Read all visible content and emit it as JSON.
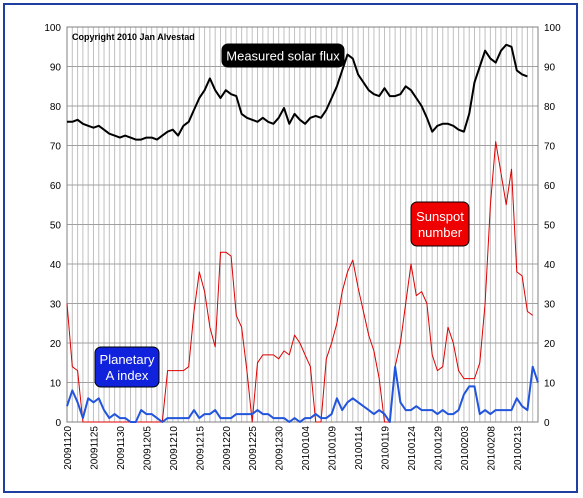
{
  "chart_data": {
    "type": "line",
    "copyright": "Copyright 2010 Jan Alvestad",
    "grid": true,
    "ylim": [
      0,
      100
    ],
    "yticks": [
      0,
      10,
      20,
      30,
      40,
      50,
      60,
      70,
      80,
      90,
      100
    ],
    "xtick_labels": [
      "20091120",
      "20091125",
      "20091130",
      "20091205",
      "20091210",
      "20091215",
      "20091220",
      "20091225",
      "20091230",
      "20100104",
      "20100109",
      "20100114",
      "20100119",
      "20100124",
      "20100129",
      "20100203",
      "20100208",
      "20100213"
    ],
    "x_start": "20091120",
    "x_end": "20100217",
    "colors": {
      "flux": "#000000",
      "sunspot": "#dd0000",
      "a_index": "#2255dd"
    },
    "annotations": [
      {
        "series": "flux",
        "text": "Measured solar flux",
        "bg": "#000000",
        "fg": "#ffffff"
      },
      {
        "series": "sunspot",
        "text": "Sunspot\nnumber",
        "bg": "#ee0000",
        "fg": "#ffffff"
      },
      {
        "series": "a_index",
        "text": "Planetary\nA index",
        "bg": "#1122dd",
        "fg": "#ffffff"
      }
    ],
    "series": [
      {
        "id": "flux",
        "values": [
          [
            0,
            76
          ],
          [
            1,
            76
          ],
          [
            2,
            76.5
          ],
          [
            3,
            75.5
          ],
          [
            4,
            75
          ],
          [
            5,
            74.5
          ],
          [
            6,
            75
          ],
          [
            7,
            74
          ],
          [
            8,
            73
          ],
          [
            9,
            72.5
          ],
          [
            10,
            72
          ],
          [
            11,
            72.5
          ],
          [
            12,
            72
          ],
          [
            13,
            71.5
          ],
          [
            14,
            71.5
          ],
          [
            15,
            72
          ],
          [
            16,
            72
          ],
          [
            17,
            71.5
          ],
          [
            18,
            72.5
          ],
          [
            19,
            73.5
          ],
          [
            20,
            74
          ],
          [
            21,
            72.5
          ],
          [
            22,
            75
          ],
          [
            23,
            76
          ],
          [
            24,
            79
          ],
          [
            25,
            82
          ],
          [
            26,
            84
          ],
          [
            27,
            87
          ],
          [
            28,
            84
          ],
          [
            29,
            82
          ],
          [
            30,
            84
          ],
          [
            31,
            83
          ],
          [
            32,
            82.5
          ],
          [
            33,
            78
          ],
          [
            34,
            77
          ],
          [
            35,
            76.5
          ],
          [
            36,
            76
          ],
          [
            37,
            77
          ],
          [
            38,
            76
          ],
          [
            39,
            75.5
          ],
          [
            40,
            77
          ],
          [
            41,
            79.5
          ],
          [
            42,
            75.5
          ],
          [
            43,
            78
          ],
          [
            44,
            76.5
          ],
          [
            45,
            75.5
          ],
          [
            46,
            77
          ],
          [
            47,
            77.5
          ],
          [
            48,
            77
          ],
          [
            49,
            79
          ],
          [
            50,
            82
          ],
          [
            51,
            85
          ],
          [
            52,
            89
          ],
          [
            53,
            93
          ],
          [
            54,
            92
          ],
          [
            55,
            88
          ],
          [
            56,
            86
          ],
          [
            57,
            84
          ],
          [
            58,
            83
          ],
          [
            59,
            82.5
          ],
          [
            60,
            84.5
          ],
          [
            61,
            82.5
          ],
          [
            62,
            82.5
          ],
          [
            63,
            83
          ],
          [
            64,
            85
          ],
          [
            65,
            84
          ],
          [
            66,
            82
          ],
          [
            67,
            80
          ],
          [
            68,
            77
          ],
          [
            69,
            73.5
          ],
          [
            70,
            75
          ],
          [
            71,
            75.5
          ],
          [
            72,
            75.5
          ],
          [
            73,
            75
          ],
          [
            74,
            74
          ],
          [
            75,
            73.5
          ],
          [
            76,
            78
          ],
          [
            77,
            86
          ],
          [
            78,
            90
          ],
          [
            79,
            94
          ],
          [
            80,
            92
          ],
          [
            81,
            91
          ],
          [
            82,
            94
          ],
          [
            83,
            95.5
          ],
          [
            84,
            95
          ],
          [
            85,
            89
          ],
          [
            86,
            88
          ],
          [
            87,
            87.5
          ]
        ]
      },
      {
        "id": "sunspot",
        "values": [
          [
            0,
            30
          ],
          [
            1,
            14
          ],
          [
            2,
            13
          ],
          [
            3,
            0
          ],
          [
            4,
            0
          ],
          [
            5,
            0
          ],
          [
            6,
            0
          ],
          [
            7,
            0
          ],
          [
            8,
            0
          ],
          [
            9,
            0
          ],
          [
            10,
            0
          ],
          [
            11,
            0
          ],
          [
            12,
            0
          ],
          [
            13,
            0
          ],
          [
            14,
            0
          ],
          [
            15,
            0
          ],
          [
            16,
            0
          ],
          [
            17,
            0
          ],
          [
            18,
            0
          ],
          [
            19,
            13
          ],
          [
            20,
            13
          ],
          [
            21,
            13
          ],
          [
            22,
            13
          ],
          [
            23,
            14
          ],
          [
            24,
            28
          ],
          [
            25,
            38
          ],
          [
            26,
            33
          ],
          [
            27,
            24
          ],
          [
            28,
            19
          ],
          [
            29,
            43
          ],
          [
            30,
            43
          ],
          [
            31,
            42
          ],
          [
            32,
            27
          ],
          [
            33,
            24
          ],
          [
            34,
            13
          ],
          [
            35,
            0
          ],
          [
            36,
            15
          ],
          [
            37,
            17
          ],
          [
            38,
            17
          ],
          [
            39,
            17
          ],
          [
            40,
            16
          ],
          [
            41,
            18
          ],
          [
            42,
            17
          ],
          [
            43,
            22
          ],
          [
            44,
            20
          ],
          [
            45,
            17
          ],
          [
            46,
            14
          ],
          [
            47,
            0
          ],
          [
            48,
            0
          ],
          [
            49,
            16
          ],
          [
            50,
            20
          ],
          [
            51,
            25
          ],
          [
            52,
            33
          ],
          [
            53,
            38
          ],
          [
            54,
            41
          ],
          [
            55,
            34
          ],
          [
            56,
            28
          ],
          [
            57,
            22
          ],
          [
            58,
            18
          ],
          [
            59,
            11
          ],
          [
            60,
            0
          ],
          [
            61,
            0
          ],
          [
            62,
            14
          ],
          [
            63,
            20
          ],
          [
            64,
            30
          ],
          [
            65,
            40
          ],
          [
            66,
            32
          ],
          [
            67,
            33
          ],
          [
            68,
            30
          ],
          [
            69,
            17
          ],
          [
            70,
            13
          ],
          [
            71,
            14
          ],
          [
            72,
            24
          ],
          [
            73,
            20
          ],
          [
            74,
            13
          ],
          [
            75,
            11
          ],
          [
            76,
            11
          ],
          [
            77,
            11
          ],
          [
            78,
            15
          ],
          [
            79,
            30
          ],
          [
            80,
            55
          ],
          [
            81,
            71
          ],
          [
            82,
            63
          ],
          [
            83,
            55
          ],
          [
            84,
            64
          ],
          [
            85,
            38
          ],
          [
            86,
            37
          ],
          [
            87,
            28
          ],
          [
            88,
            27
          ]
        ]
      },
      {
        "id": "a_index",
        "values": [
          [
            0,
            4
          ],
          [
            1,
            8
          ],
          [
            2,
            5
          ],
          [
            3,
            1
          ],
          [
            4,
            6
          ],
          [
            5,
            5
          ],
          [
            6,
            6
          ],
          [
            7,
            3
          ],
          [
            8,
            1
          ],
          [
            9,
            2
          ],
          [
            10,
            1
          ],
          [
            11,
            1
          ],
          [
            12,
            0
          ],
          [
            13,
            0
          ],
          [
            14,
            3
          ],
          [
            15,
            2
          ],
          [
            16,
            2
          ],
          [
            17,
            1
          ],
          [
            18,
            0
          ],
          [
            19,
            1
          ],
          [
            20,
            1
          ],
          [
            21,
            1
          ],
          [
            22,
            1
          ],
          [
            23,
            1
          ],
          [
            24,
            3
          ],
          [
            25,
            1
          ],
          [
            26,
            2
          ],
          [
            27,
            2
          ],
          [
            28,
            3
          ],
          [
            29,
            1
          ],
          [
            30,
            1
          ],
          [
            31,
            1
          ],
          [
            32,
            2
          ],
          [
            33,
            2
          ],
          [
            34,
            2
          ],
          [
            35,
            2
          ],
          [
            36,
            3
          ],
          [
            37,
            2
          ],
          [
            38,
            2
          ],
          [
            39,
            1
          ],
          [
            40,
            1
          ],
          [
            41,
            1
          ],
          [
            42,
            0
          ],
          [
            43,
            1
          ],
          [
            44,
            0
          ],
          [
            45,
            1
          ],
          [
            46,
            1
          ],
          [
            47,
            2
          ],
          [
            48,
            1
          ],
          [
            49,
            1
          ],
          [
            50,
            2
          ],
          [
            51,
            6
          ],
          [
            52,
            3
          ],
          [
            53,
            5
          ],
          [
            54,
            6
          ],
          [
            55,
            5
          ],
          [
            56,
            4
          ],
          [
            57,
            3
          ],
          [
            58,
            2
          ],
          [
            59,
            3
          ],
          [
            60,
            2
          ],
          [
            61,
            0
          ],
          [
            62,
            14
          ],
          [
            63,
            5
          ],
          [
            64,
            3
          ],
          [
            65,
            3
          ],
          [
            66,
            4
          ],
          [
            67,
            3
          ],
          [
            68,
            3
          ],
          [
            69,
            3
          ],
          [
            70,
            2
          ],
          [
            71,
            3
          ],
          [
            72,
            2
          ],
          [
            73,
            2
          ],
          [
            74,
            3
          ],
          [
            75,
            7
          ],
          [
            76,
            9
          ],
          [
            77,
            9
          ],
          [
            78,
            2
          ],
          [
            79,
            3
          ],
          [
            80,
            2
          ],
          [
            81,
            3
          ],
          [
            82,
            3
          ],
          [
            83,
            3
          ],
          [
            84,
            3
          ],
          [
            85,
            6
          ],
          [
            86,
            4
          ],
          [
            87,
            3
          ],
          [
            88,
            14
          ],
          [
            89,
            10
          ]
        ]
      }
    ]
  }
}
